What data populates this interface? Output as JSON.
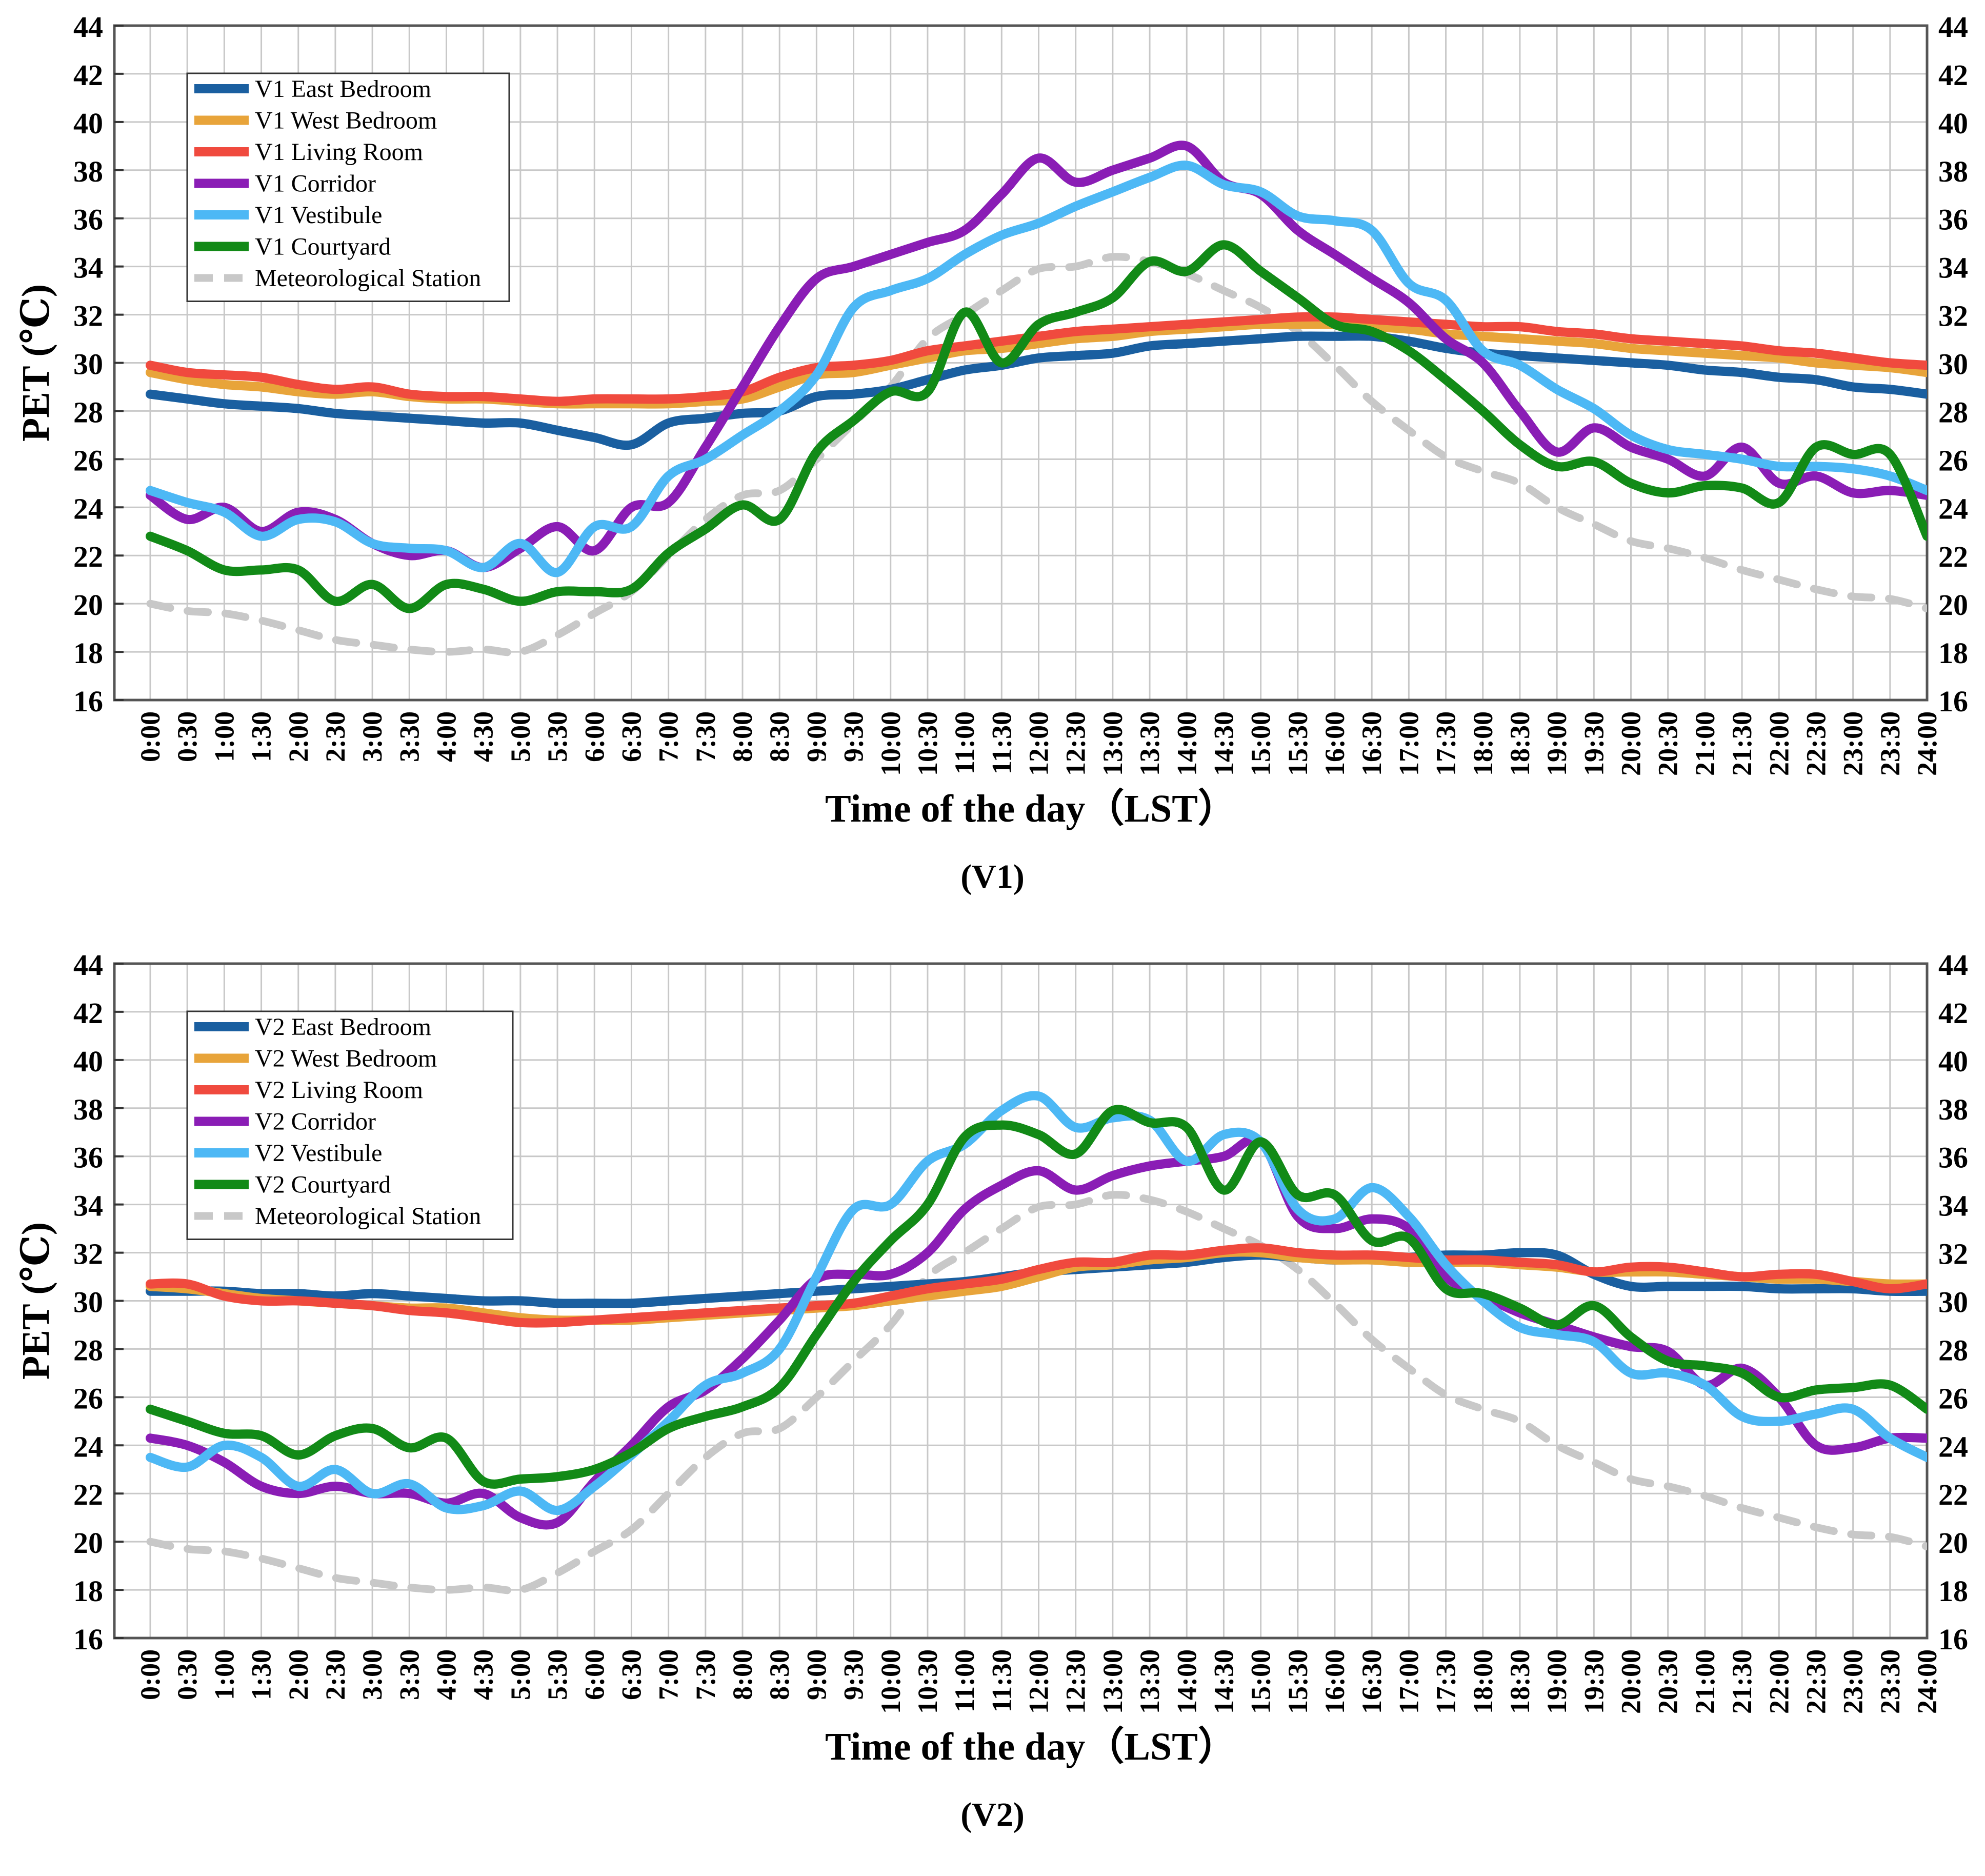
{
  "chart_data": [
    {
      "type": "line",
      "caption": "(V1)",
      "xlabel": "Time of  the day（LST）",
      "ylabel": "PET (℃)",
      "ylim": [
        16,
        44
      ],
      "yticks": [
        16,
        18,
        20,
        22,
        24,
        26,
        28,
        30,
        32,
        34,
        36,
        38,
        40,
        42,
        44
      ],
      "categories": [
        "0:00",
        "0:30",
        "1:00",
        "1:30",
        "2:00",
        "2:30",
        "3:00",
        "3:30",
        "4:00",
        "4:30",
        "5:00",
        "5:30",
        "6:00",
        "6:30",
        "7:00",
        "7:30",
        "8:00",
        "8:30",
        "9:00",
        "9:30",
        "10:00",
        "10:30",
        "11:00",
        "11:30",
        "12:00",
        "12:30",
        "13:00",
        "13:30",
        "14:00",
        "14:30",
        "15:00",
        "15:30",
        "16:00",
        "16:30",
        "17:00",
        "17:30",
        "18:00",
        "18:30",
        "19:00",
        "19:30",
        "20:00",
        "20:30",
        "21:00",
        "21:30",
        "22:00",
        "22:30",
        "23:00",
        "23:30",
        "24:00"
      ],
      "grid": true,
      "legend_position": "top-left",
      "series": [
        {
          "name": "V1 East Bedroom",
          "color": "#1a5fa0",
          "dashed": false,
          "values": [
            28.7,
            28.5,
            28.3,
            28.2,
            28.1,
            27.9,
            27.8,
            27.7,
            27.6,
            27.5,
            27.5,
            27.2,
            26.9,
            26.6,
            27.5,
            27.7,
            27.9,
            28.0,
            28.6,
            28.7,
            28.9,
            29.3,
            29.7,
            29.9,
            30.2,
            30.3,
            30.4,
            30.7,
            30.8,
            30.9,
            31.0,
            31.1,
            31.1,
            31.1,
            30.9,
            30.6,
            30.4,
            30.3,
            30.2,
            30.1,
            30.0,
            29.9,
            29.7,
            29.6,
            29.4,
            29.3,
            29.0,
            28.9,
            28.7
          ]
        },
        {
          "name": "V1 West Bedroom",
          "color": "#e8a43a",
          "dashed": false,
          "values": [
            29.6,
            29.3,
            29.1,
            29.0,
            28.8,
            28.7,
            28.8,
            28.6,
            28.5,
            28.5,
            28.4,
            28.3,
            28.3,
            28.3,
            28.3,
            28.4,
            28.5,
            29.0,
            29.5,
            29.6,
            29.9,
            30.2,
            30.5,
            30.6,
            30.8,
            31.0,
            31.1,
            31.3,
            31.4,
            31.5,
            31.6,
            31.6,
            31.6,
            31.5,
            31.4,
            31.2,
            31.1,
            31.0,
            30.9,
            30.8,
            30.6,
            30.5,
            30.4,
            30.3,
            30.2,
            30.0,
            29.9,
            29.8,
            29.6
          ]
        },
        {
          "name": "V1 Living Room",
          "color": "#f04a3e",
          "dashed": false,
          "values": [
            29.9,
            29.6,
            29.5,
            29.4,
            29.1,
            28.9,
            29.0,
            28.7,
            28.6,
            28.6,
            28.5,
            28.4,
            28.5,
            28.5,
            28.5,
            28.6,
            28.8,
            29.4,
            29.8,
            29.9,
            30.1,
            30.5,
            30.7,
            30.9,
            31.1,
            31.3,
            31.4,
            31.5,
            31.6,
            31.7,
            31.8,
            31.9,
            31.9,
            31.8,
            31.7,
            31.6,
            31.5,
            31.5,
            31.3,
            31.2,
            31.0,
            30.9,
            30.8,
            30.7,
            30.5,
            30.4,
            30.2,
            30.0,
            29.9
          ]
        },
        {
          "name": "V1 Corridor",
          "color": "#8a1db5",
          "dashed": false,
          "values": [
            24.5,
            23.5,
            24.0,
            23.0,
            23.8,
            23.5,
            22.5,
            22.0,
            22.2,
            21.5,
            22.3,
            23.2,
            22.2,
            24.0,
            24.2,
            26.5,
            29.0,
            31.5,
            33.5,
            34.0,
            34.5,
            35.0,
            35.5,
            37.0,
            38.5,
            37.5,
            38.0,
            38.5,
            39.0,
            37.5,
            37.0,
            35.5,
            34.5,
            33.5,
            32.5,
            31.0,
            30.0,
            28.0,
            26.3,
            27.3,
            26.5,
            26.0,
            25.3,
            26.5,
            25.0,
            25.3,
            24.6,
            24.7,
            24.5
          ]
        },
        {
          "name": "V1 Vestibule",
          "color": "#4db8f5",
          "dashed": false,
          "values": [
            24.7,
            24.2,
            23.8,
            22.8,
            23.5,
            23.4,
            22.5,
            22.3,
            22.2,
            21.5,
            22.5,
            21.3,
            23.2,
            23.2,
            25.3,
            26.0,
            27.0,
            28.0,
            29.5,
            32.3,
            33.0,
            33.5,
            34.5,
            35.3,
            35.8,
            36.5,
            37.1,
            37.7,
            38.2,
            37.4,
            37.1,
            36.1,
            35.9,
            35.5,
            33.3,
            32.6,
            30.5,
            29.9,
            28.9,
            28.1,
            27.0,
            26.4,
            26.2,
            26.0,
            25.7,
            25.7,
            25.6,
            25.3,
            24.7
          ]
        },
        {
          "name": "V1 Courtyard",
          "color": "#128a17",
          "dashed": false,
          "values": [
            22.8,
            22.2,
            21.4,
            21.4,
            21.4,
            20.1,
            20.8,
            19.8,
            20.8,
            20.6,
            20.1,
            20.5,
            20.5,
            20.6,
            22.1,
            23.1,
            24.1,
            23.5,
            26.3,
            27.6,
            28.8,
            28.8,
            32.1,
            30.0,
            31.6,
            32.1,
            32.7,
            34.2,
            33.8,
            34.9,
            33.8,
            32.7,
            31.6,
            31.3,
            30.5,
            29.3,
            28.0,
            26.6,
            25.7,
            25.9,
            25.0,
            24.6,
            24.9,
            24.8,
            24.2,
            26.5,
            26.2,
            26.2,
            22.8
          ]
        },
        {
          "name": "Meteorological Station",
          "color": "#c8c8c8",
          "dashed": true,
          "values": [
            20.0,
            19.7,
            19.6,
            19.3,
            18.9,
            18.5,
            18.3,
            18.1,
            18.0,
            18.1,
            18.0,
            18.7,
            19.6,
            20.5,
            22.0,
            23.5,
            24.5,
            24.7,
            26.0,
            27.5,
            29.0,
            31.0,
            32.0,
            33.0,
            33.9,
            34.0,
            34.4,
            34.2,
            33.7,
            33.0,
            32.3,
            31.3,
            29.9,
            28.4,
            27.2,
            26.1,
            25.5,
            25.0,
            24.0,
            23.3,
            22.6,
            22.3,
            21.9,
            21.4,
            21.0,
            20.6,
            20.3,
            20.2,
            19.8
          ]
        }
      ]
    },
    {
      "type": "line",
      "caption": "(V2)",
      "xlabel": "Time of the day（LST）",
      "ylabel": "PET (℃)",
      "ylim": [
        16,
        44
      ],
      "yticks": [
        16,
        18,
        20,
        22,
        24,
        26,
        28,
        30,
        32,
        34,
        36,
        38,
        40,
        42,
        44
      ],
      "categories": [
        "0:00",
        "0:30",
        "1:00",
        "1:30",
        "2:00",
        "2:30",
        "3:00",
        "3:30",
        "4:00",
        "4:30",
        "5:00",
        "5:30",
        "6:00",
        "6:30",
        "7:00",
        "7:30",
        "8:00",
        "8:30",
        "9:00",
        "9:30",
        "10:00",
        "10:30",
        "11:00",
        "11:30",
        "12:00",
        "12:30",
        "13:00",
        "13:30",
        "14:00",
        "14:30",
        "15:00",
        "15:30",
        "16:00",
        "16:30",
        "17:00",
        "17:30",
        "18:00",
        "18:30",
        "19:00",
        "19:30",
        "20:00",
        "20:30",
        "21:00",
        "21:30",
        "22:00",
        "22:30",
        "23:00",
        "23:30",
        "24:00"
      ],
      "grid": true,
      "legend_position": "top-left",
      "series": [
        {
          "name": "V2 East Bedroom",
          "color": "#1a5fa0",
          "dashed": false,
          "values": [
            30.4,
            30.4,
            30.4,
            30.3,
            30.3,
            30.2,
            30.3,
            30.2,
            30.1,
            30.0,
            30.0,
            29.9,
            29.9,
            29.9,
            30.0,
            30.1,
            30.2,
            30.3,
            30.4,
            30.5,
            30.6,
            30.7,
            30.8,
            31.0,
            31.2,
            31.3,
            31.4,
            31.5,
            31.6,
            31.8,
            31.9,
            31.8,
            31.7,
            31.8,
            31.8,
            31.9,
            31.9,
            32.0,
            31.9,
            31.1,
            30.6,
            30.6,
            30.6,
            30.6,
            30.5,
            30.5,
            30.5,
            30.4,
            30.4
          ]
        },
        {
          "name": "V2 West Bedroom",
          "color": "#e8a43a",
          "dashed": false,
          "values": [
            30.6,
            30.5,
            30.3,
            30.1,
            30.0,
            29.9,
            29.8,
            29.7,
            29.7,
            29.5,
            29.3,
            29.2,
            29.2,
            29.2,
            29.3,
            29.4,
            29.5,
            29.6,
            29.7,
            29.8,
            30.0,
            30.2,
            30.4,
            30.6,
            31.0,
            31.4,
            31.5,
            31.7,
            31.8,
            32.0,
            32.0,
            31.8,
            31.7,
            31.7,
            31.6,
            31.6,
            31.6,
            31.5,
            31.4,
            31.2,
            31.2,
            31.2,
            31.1,
            31.0,
            30.9,
            30.9,
            30.8,
            30.7,
            30.7
          ]
        },
        {
          "name": "V2 Living Room",
          "color": "#f04a3e",
          "dashed": false,
          "values": [
            30.7,
            30.7,
            30.2,
            30.0,
            30.0,
            29.9,
            29.8,
            29.6,
            29.5,
            29.3,
            29.1,
            29.1,
            29.2,
            29.3,
            29.4,
            29.5,
            29.6,
            29.7,
            29.8,
            29.9,
            30.2,
            30.5,
            30.7,
            30.9,
            31.3,
            31.6,
            31.6,
            31.9,
            31.9,
            32.1,
            32.2,
            32.0,
            31.9,
            31.9,
            31.8,
            31.7,
            31.7,
            31.6,
            31.5,
            31.2,
            31.4,
            31.4,
            31.2,
            31.0,
            31.1,
            31.1,
            30.8,
            30.5,
            30.7
          ]
        },
        {
          "name": "V2 Corridor",
          "color": "#8a1db5",
          "dashed": false,
          "values": [
            24.3,
            24.0,
            23.3,
            22.3,
            22.0,
            22.3,
            22.0,
            22.0,
            21.6,
            22.0,
            21.0,
            20.8,
            22.5,
            24.0,
            25.6,
            26.3,
            27.6,
            29.2,
            30.9,
            31.1,
            31.1,
            32.0,
            33.8,
            34.8,
            35.4,
            34.6,
            35.2,
            35.6,
            35.8,
            36.0,
            36.6,
            33.5,
            33.0,
            33.4,
            33.0,
            31.0,
            30.2,
            29.5,
            29.0,
            28.5,
            28.1,
            27.9,
            26.5,
            27.2,
            26.0,
            24.0,
            23.9,
            24.3,
            24.3
          ]
        },
        {
          "name": "V2 Vestibule",
          "color": "#4db8f5",
          "dashed": false,
          "values": [
            23.5,
            23.1,
            24.0,
            23.5,
            22.3,
            23.0,
            22.0,
            22.4,
            21.4,
            21.5,
            22.1,
            21.3,
            22.3,
            23.6,
            25.0,
            26.5,
            27.0,
            28.0,
            31.0,
            33.8,
            34.0,
            35.8,
            36.5,
            37.9,
            38.5,
            37.2,
            37.6,
            37.5,
            35.8,
            36.9,
            36.6,
            33.8,
            33.4,
            34.7,
            33.5,
            31.5,
            30.0,
            28.9,
            28.6,
            28.3,
            27.0,
            27.0,
            26.5,
            25.2,
            25.0,
            25.3,
            25.5,
            24.3,
            23.5
          ]
        },
        {
          "name": "V2 Courtyard",
          "color": "#128a17",
          "dashed": false,
          "values": [
            25.5,
            25.0,
            24.5,
            24.4,
            23.6,
            24.4,
            24.7,
            23.9,
            24.3,
            22.5,
            22.6,
            22.7,
            23.0,
            23.7,
            24.7,
            25.2,
            25.6,
            26.4,
            28.6,
            30.8,
            32.5,
            34.0,
            36.8,
            37.3,
            36.9,
            36.1,
            37.9,
            37.4,
            37.2,
            34.6,
            36.6,
            34.4,
            34.4,
            32.5,
            32.6,
            30.5,
            30.3,
            29.7,
            29.0,
            29.8,
            28.5,
            27.5,
            27.3,
            27.0,
            26.0,
            26.3,
            26.4,
            26.5,
            25.5
          ]
        },
        {
          "name": "Meteorological Station",
          "color": "#c8c8c8",
          "dashed": true,
          "values": [
            20.0,
            19.7,
            19.6,
            19.3,
            18.9,
            18.5,
            18.3,
            18.1,
            18.0,
            18.1,
            18.0,
            18.7,
            19.6,
            20.5,
            22.0,
            23.5,
            24.5,
            24.7,
            26.0,
            27.5,
            29.0,
            31.0,
            32.0,
            33.0,
            33.9,
            34.0,
            34.4,
            34.2,
            33.7,
            33.0,
            32.3,
            31.3,
            29.9,
            28.4,
            27.2,
            26.1,
            25.5,
            25.0,
            24.0,
            23.3,
            22.6,
            22.3,
            21.9,
            21.4,
            21.0,
            20.6,
            20.3,
            20.2,
            19.8
          ]
        }
      ]
    }
  ]
}
